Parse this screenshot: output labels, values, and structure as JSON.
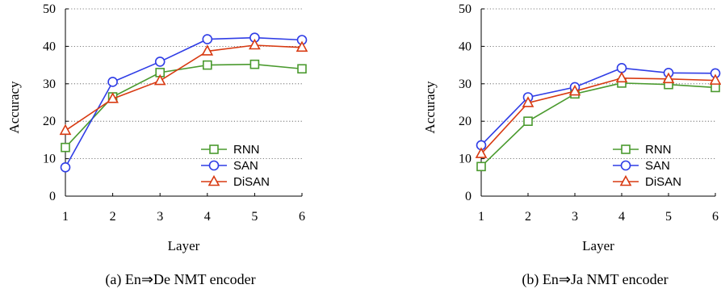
{
  "chart_data": [
    {
      "type": "line",
      "caption": "(a) En⇒De NMT encoder",
      "xlabel": "Layer",
      "ylabel": "Accuracy",
      "x": [
        1,
        2,
        3,
        4,
        5,
        6
      ],
      "xlim": [
        1,
        6
      ],
      "ylim": [
        0,
        50
      ],
      "yticks": [
        0,
        10,
        20,
        30,
        40,
        50
      ],
      "grid": "horizontal dotted",
      "legend_position": "bottom-right",
      "series": [
        {
          "name": "RNN",
          "marker": "square",
          "color": "#4a9a2e",
          "values": [
            13.0,
            26.5,
            33.0,
            35.0,
            35.2,
            34.0
          ]
        },
        {
          "name": "SAN",
          "marker": "circle",
          "color": "#2f3de6",
          "values": [
            7.7,
            30.5,
            35.9,
            41.9,
            42.3,
            41.7
          ]
        },
        {
          "name": "DiSAN",
          "marker": "triangle",
          "color": "#d83a12",
          "values": [
            17.5,
            26.0,
            30.8,
            38.7,
            40.3,
            39.7
          ]
        }
      ]
    },
    {
      "type": "line",
      "caption": "(b) En⇒Ja NMT encoder",
      "xlabel": "Layer",
      "ylabel": "Accuracy",
      "x": [
        1,
        2,
        3,
        4,
        5,
        6
      ],
      "xlim": [
        1,
        6
      ],
      "ylim": [
        0,
        50
      ],
      "yticks": [
        0,
        10,
        20,
        30,
        40,
        50
      ],
      "grid": "horizontal dotted",
      "legend_position": "bottom-right",
      "series": [
        {
          "name": "RNN",
          "marker": "square",
          "color": "#4a9a2e",
          "values": [
            7.9,
            20.0,
            27.3,
            30.2,
            29.8,
            29.0
          ]
        },
        {
          "name": "SAN",
          "marker": "circle",
          "color": "#2f3de6",
          "values": [
            13.6,
            26.4,
            29.1,
            34.2,
            32.9,
            32.8
          ]
        },
        {
          "name": "DiSAN",
          "marker": "triangle",
          "color": "#d83a12",
          "values": [
            11.3,
            24.9,
            28.0,
            31.5,
            31.3,
            30.9
          ]
        }
      ]
    }
  ]
}
